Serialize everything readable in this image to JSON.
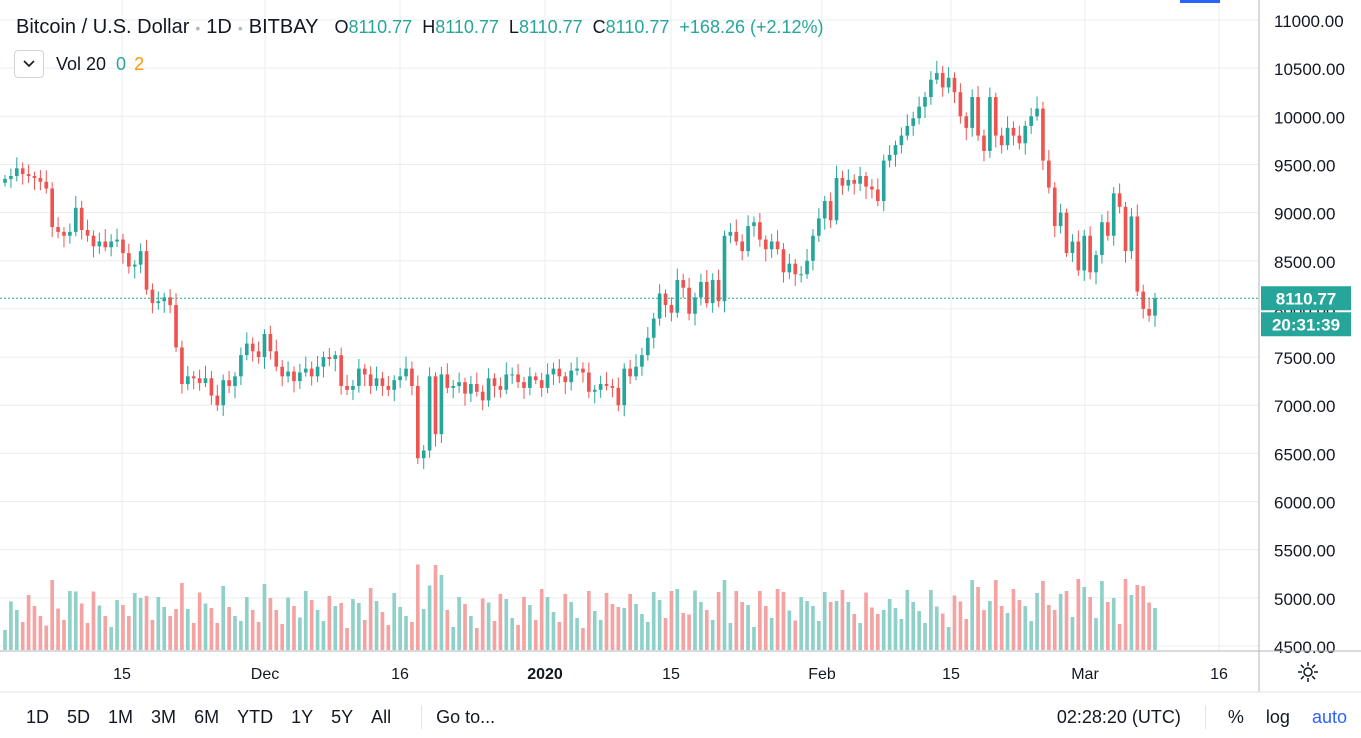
{
  "header": {
    "symbol": "Bitcoin / U.S. Dollar",
    "interval": "1D",
    "exchange": "BITBAY",
    "open_label": "O",
    "open": "8110.77",
    "high_label": "H",
    "high": "8110.77",
    "low_label": "L",
    "low": "8110.77",
    "close_label": "C",
    "close": "8110.77",
    "change": "+168.26 (+2.12%)"
  },
  "volume_legend": {
    "name": "Vol 20",
    "v1": "0",
    "v2": "2"
  },
  "price_label": {
    "value": "8110.77",
    "countdown": "20:31:39"
  },
  "bottom_toolbar": {
    "ranges": [
      "1D",
      "5D",
      "1M",
      "3M",
      "6M",
      "YTD",
      "1Y",
      "5Y",
      "All"
    ],
    "goto": "Go to...",
    "clock": "02:28:20 (UTC)",
    "percent": "%",
    "log": "log",
    "auto": "auto"
  },
  "colors": {
    "up": "#26a69a",
    "down": "#ef5350",
    "up_vol": "#8fd1c8",
    "down_vol": "#f4a3a2",
    "grid": "#e9ecf2",
    "accent": "#2962ff"
  },
  "icons": {
    "collapse": "chevron-down-icon",
    "settings": "gear-icon"
  },
  "chart_data": {
    "type": "candlestick",
    "title": "Bitcoin / U.S. Dollar",
    "y_axis": {
      "min": 4500,
      "max": 11000,
      "ticks": [
        "11000.00",
        "10500.00",
        "10000.00",
        "9500.00",
        "9000.00",
        "8500.00",
        "8000.00",
        "7500.00",
        "7000.00",
        "6500.00",
        "6000.00",
        "5500.00",
        "5000.00",
        "4500.00"
      ]
    },
    "x_axis": {
      "ticks": [
        "15",
        "Dec",
        "16",
        "2020",
        "15",
        "Feb",
        "15",
        "Mar",
        "16"
      ]
    },
    "last_price": 8110.77,
    "candles_close": [
      9350,
      9380,
      9460,
      9400,
      9380,
      9360,
      9320,
      9250,
      8850,
      8800,
      8760,
      8800,
      9050,
      8820,
      8760,
      8650,
      8700,
      8640,
      8700,
      8720,
      8580,
      8440,
      8460,
      8600,
      8200,
      8060,
      8080,
      8120,
      8040,
      7600,
      7220,
      7300,
      7280,
      7230,
      7280,
      7100,
      7000,
      7260,
      7200,
      7300,
      7520,
      7640,
      7560,
      7500,
      7740,
      7560,
      7400,
      7300,
      7350,
      7250,
      7340,
      7380,
      7300,
      7400,
      7500,
      7480,
      7520,
      7200,
      7160,
      7200,
      7380,
      7320,
      7200,
      7280,
      7200,
      7160,
      7260,
      7300,
      7380,
      7200,
      6450,
      6530,
      7300,
      6700,
      7320,
      7180,
      7200,
      7240,
      7120,
      7220,
      7140,
      7050,
      7280,
      7200,
      7160,
      7320,
      7320,
      7240,
      7180,
      7300,
      7260,
      7180,
      7320,
      7380,
      7300,
      7240,
      7360,
      7380,
      7340,
      7140,
      7160,
      7220,
      7200,
      7180,
      7000,
      7380,
      7300,
      7400,
      7520,
      7700,
      7900,
      8160,
      8040,
      7960,
      8300,
      8220,
      7950,
      8120,
      8280,
      8060,
      8300,
      8080,
      8760,
      8800,
      8700,
      8600,
      8860,
      8900,
      8720,
      8620,
      8700,
      8620,
      8380,
      8470,
      8360,
      8360,
      8500,
      8760,
      8940,
      9120,
      8920,
      9360,
      9280,
      9340,
      9300,
      9380,
      9270,
      9240,
      9120,
      9540,
      9600,
      9700,
      9800,
      9900,
      9980,
      10100,
      10200,
      10380,
      10450,
      10300,
      10400,
      10250,
      10000,
      9880,
      10200,
      9800,
      9640,
      10200,
      9800,
      9700,
      9880,
      9800,
      9720,
      9900,
      10000,
      10080,
      9540,
      9260,
      8860,
      9000,
      8580,
      8700,
      8400,
      8760,
      8380,
      8560,
      8900,
      8760,
      9200,
      9060,
      8600,
      8960,
      8180,
      8000,
      7930,
      8110.77
    ]
  }
}
